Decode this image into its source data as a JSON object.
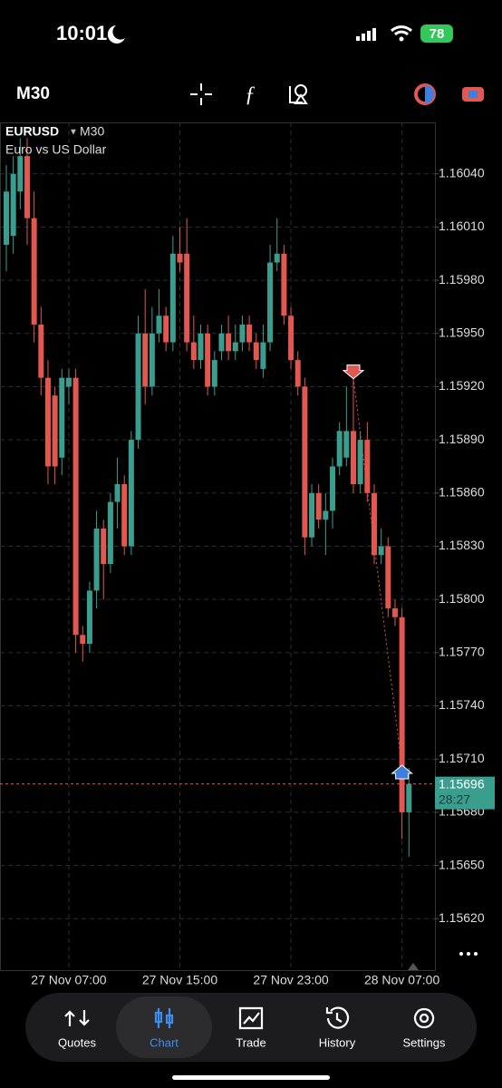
{
  "status_bar": {
    "time": "10:01",
    "battery": "78"
  },
  "toolbar": {
    "timeframe": "M30"
  },
  "chart_data": {
    "type": "candlestick",
    "symbol": "EURUSD",
    "timeframe": "M30",
    "description": "Euro vs US Dollar",
    "categories": [
      null,
      null,
      null,
      null,
      null,
      null,
      null,
      null,
      null,
      "27 Nov 07:00",
      null,
      null,
      null,
      null,
      null,
      null,
      null,
      null,
      null,
      null,
      null,
      null,
      null,
      null,
      null,
      "27 Nov 15:00",
      null,
      null,
      null,
      null,
      null,
      null,
      null,
      null,
      null,
      null,
      null,
      null,
      null,
      null,
      null,
      "27 Nov 23:00",
      null,
      null,
      null,
      null,
      null,
      null,
      null,
      null,
      null,
      null,
      null,
      null,
      null,
      null,
      null,
      "28 Nov 07:00",
      null
    ],
    "open": [
      1.16,
      1.16005,
      1.1603,
      1.1605,
      1.16015,
      1.15955,
      1.15925,
      1.15915,
      1.1588,
      1.1592,
      1.15925,
      1.1578,
      1.15775,
      1.15805,
      1.1584,
      1.1582,
      1.15855,
      1.15865,
      1.1583,
      1.1589,
      1.1595,
      1.1592,
      1.1595,
      1.1596,
      1.15945,
      1.15995,
      1.15995,
      1.15945,
      1.15935,
      1.1595,
      1.1592,
      1.1594,
      1.1595,
      1.1594,
      1.15945,
      1.15955,
      1.15945,
      1.1593,
      1.15945,
      1.1599,
      1.15995,
      1.1596,
      1.15935,
      1.1592,
      1.15835,
      1.1586,
      1.15845,
      1.1585,
      1.15875,
      1.1588,
      1.15895,
      1.15865,
      1.1589,
      1.1586,
      1.15825,
      1.1583,
      1.15795,
      1.1579,
      1.1568
    ],
    "high": [
      1.16045,
      1.1605,
      1.1606,
      1.1606,
      1.1603,
      1.15965,
      1.15935,
      1.1592,
      1.1593,
      1.1593,
      1.1593,
      1.15785,
      1.1581,
      1.1585,
      1.15845,
      1.1586,
      1.1588,
      1.1587,
      1.15895,
      1.1596,
      1.15975,
      1.15965,
      1.15975,
      1.15965,
      1.16005,
      1.1601,
      1.16015,
      1.1596,
      1.15955,
      1.15955,
      1.1594,
      1.15955,
      1.1596,
      1.15955,
      1.1596,
      1.1596,
      1.1595,
      1.15955,
      1.16,
      1.16015,
      1.16,
      1.15965,
      1.1594,
      1.15925,
      1.15865,
      1.15865,
      1.1586,
      1.1588,
      1.159,
      1.1592,
      1.15925,
      1.15895,
      1.159,
      1.15865,
      1.1584,
      1.15835,
      1.158,
      1.15795,
      1.15705
    ],
    "low": [
      1.15985,
      1.15995,
      1.1602,
      1.16,
      1.15945,
      1.15915,
      1.15865,
      1.15865,
      1.1587,
      1.1591,
      1.1577,
      1.15765,
      1.1577,
      1.15795,
      1.158,
      1.15815,
      1.1584,
      1.15825,
      1.15825,
      1.15885,
      1.1591,
      1.15915,
      1.15945,
      1.1594,
      1.1594,
      1.15985,
      1.1594,
      1.1593,
      1.1593,
      1.15915,
      1.15915,
      1.15935,
      1.15935,
      1.15935,
      1.1594,
      1.1594,
      1.1593,
      1.15925,
      1.1594,
      1.15985,
      1.15955,
      1.1593,
      1.15915,
      1.15825,
      1.1583,
      1.1584,
      1.15825,
      1.1584,
      1.1587,
      1.15875,
      1.1586,
      1.1586,
      1.15855,
      1.1582,
      1.1582,
      1.1579,
      1.15785,
      1.15665,
      1.15655
    ],
    "close": [
      1.1603,
      1.1604,
      1.1605,
      1.16015,
      1.15955,
      1.15925,
      1.15875,
      1.15875,
      1.15925,
      1.15925,
      1.1578,
      1.15775,
      1.15805,
      1.1584,
      1.1582,
      1.15855,
      1.15865,
      1.1583,
      1.1589,
      1.1595,
      1.1592,
      1.1595,
      1.1596,
      1.15945,
      1.15995,
      1.1599,
      1.15945,
      1.15935,
      1.1595,
      1.1592,
      1.15935,
      1.1595,
      1.1594,
      1.15945,
      1.15955,
      1.15945,
      1.15935,
      1.15945,
      1.1599,
      1.15995,
      1.1596,
      1.15935,
      1.1592,
      1.15835,
      1.1586,
      1.15845,
      1.1585,
      1.15875,
      1.15895,
      1.15895,
      1.15865,
      1.1589,
      1.1586,
      1.15825,
      1.1583,
      1.15795,
      1.1579,
      1.1568,
      1.15696
    ],
    "up_color": "#3a9e8f",
    "down_color": "#e2574f",
    "ylim": [
      1.15591,
      1.16069
    ],
    "yticks": [
      {
        "value": 1.1604,
        "label": "1.16040"
      },
      {
        "value": 1.1601,
        "label": "1.16010"
      },
      {
        "value": 1.1598,
        "label": "1.15980"
      },
      {
        "value": 1.1595,
        "label": "1.15950"
      },
      {
        "value": 1.1592,
        "label": "1.15920"
      },
      {
        "value": 1.1589,
        "label": "1.15890"
      },
      {
        "value": 1.1586,
        "label": "1.15860"
      },
      {
        "value": 1.1583,
        "label": "1.15830"
      },
      {
        "value": 1.158,
        "label": "1.15800"
      },
      {
        "value": 1.1577,
        "label": "1.15770"
      },
      {
        "value": 1.1574,
        "label": "1.15740"
      },
      {
        "value": 1.1571,
        "label": "1.15710"
      },
      {
        "value": 1.1568,
        "label": "1.15680"
      },
      {
        "value": 1.1565,
        "label": "1.15650"
      },
      {
        "value": 1.1562,
        "label": "1.15620"
      }
    ],
    "grid": true,
    "current_price": 1.15696,
    "countdown": "28:27",
    "trade_markers": [
      {
        "index": 50,
        "price": 1.15925,
        "color": "#e2574f"
      },
      {
        "index": 57,
        "price": 1.15705,
        "color": "#3d7fe0"
      }
    ]
  },
  "tab_bar": {
    "tabs": [
      "Quotes",
      "Chart",
      "Trade",
      "History",
      "Settings"
    ],
    "active": 1
  }
}
